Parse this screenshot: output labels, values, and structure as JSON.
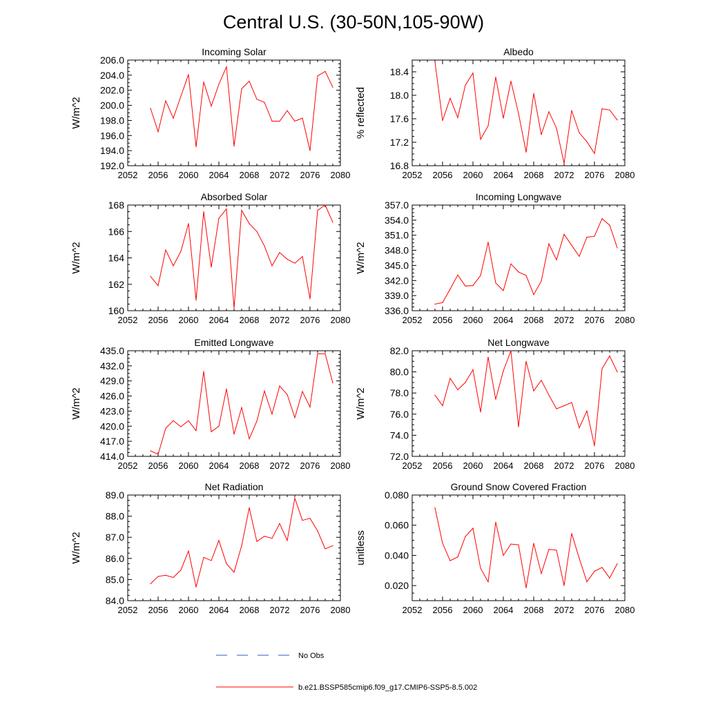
{
  "page_title": "Central U.S. (30-50N,105-90W)",
  "legend": {
    "position": "bottom-center",
    "entries": [
      {
        "label": "No Obs",
        "color": "#3355cc",
        "style": "dashed"
      },
      {
        "label": "b.e21.BSSP585cmip6.f09_g17.CMIP6-SSP5-8.5.002",
        "color": "#ff0000",
        "style": "solid"
      }
    ]
  },
  "chart_data": [
    {
      "type": "line",
      "title": "Incoming Solar",
      "ylabel": "W/m^2",
      "xlim": [
        2052,
        2080
      ],
      "xticks": [
        "2052",
        "2056",
        "2060",
        "2064",
        "2068",
        "2072",
        "2076",
        "2080"
      ],
      "ylim": [
        192,
        206
      ],
      "yticks": [
        "192.0",
        "194.0",
        "196.0",
        "198.0",
        "200.0",
        "202.0",
        "204.0",
        "206.0"
      ],
      "grid": false,
      "series": [
        {
          "name": "b.e21.BSSP585cmip6.f09_g17.CMIP6-SSP5-8.5.002",
          "color": "#ff0000",
          "x": [
            2055,
            2056,
            2057,
            2058,
            2059,
            2060,
            2061,
            2062,
            2063,
            2064,
            2065,
            2066,
            2067,
            2068,
            2069,
            2070,
            2071,
            2072,
            2073,
            2074,
            2075,
            2076,
            2077,
            2078,
            2079
          ],
          "values": [
            199.6,
            196.5,
            200.6,
            198.3,
            201.2,
            204.1,
            194.5,
            203.1,
            199.9,
            202.8,
            205.1,
            194.6,
            202.2,
            203.2,
            200.8,
            200.4,
            197.9,
            197.9,
            199.3,
            197.9,
            198.3,
            194.0,
            203.9,
            204.5,
            202.4
          ]
        }
      ]
    },
    {
      "type": "line",
      "title": "Albedo",
      "ylabel": "% reflected",
      "xlim": [
        2052,
        2080
      ],
      "xticks": [
        "2052",
        "2056",
        "2060",
        "2064",
        "2068",
        "2072",
        "2076",
        "2080"
      ],
      "ylim": [
        16.8,
        18.6
      ],
      "yticks": [
        "16.8",
        "17.2",
        "17.6",
        "18.0",
        "18.4"
      ],
      "grid": false,
      "series": [
        {
          "name": "b.e21.BSSP585cmip6.f09_g17.CMIP6-SSP5-8.5.002",
          "color": "#ff0000",
          "x": [
            2055,
            2056,
            2057,
            2058,
            2059,
            2060,
            2061,
            2062,
            2063,
            2064,
            2065,
            2066,
            2067,
            2068,
            2069,
            2070,
            2071,
            2072,
            2073,
            2074,
            2075,
            2076,
            2077,
            2078,
            2079
          ],
          "values": [
            18.57,
            17.57,
            17.95,
            17.62,
            18.17,
            18.38,
            17.25,
            17.48,
            18.31,
            17.61,
            18.24,
            17.69,
            17.03,
            18.03,
            17.33,
            17.72,
            17.44,
            16.84,
            17.74,
            17.36,
            17.21,
            17.01,
            17.77,
            17.75,
            17.58
          ]
        }
      ]
    },
    {
      "type": "line",
      "title": "Absorbed Solar",
      "ylabel": "W/m^2",
      "xlim": [
        2052,
        2080
      ],
      "xticks": [
        "2052",
        "2056",
        "2060",
        "2064",
        "2068",
        "2072",
        "2076",
        "2080"
      ],
      "ylim": [
        160,
        168
      ],
      "yticks": [
        "160",
        "162",
        "164",
        "166",
        "168"
      ],
      "grid": false,
      "series": [
        {
          "name": "b.e21.BSSP585cmip6.f09_g17.CMIP6-SSP5-8.5.002",
          "color": "#ff0000",
          "x": [
            2055,
            2056,
            2057,
            2058,
            2059,
            2060,
            2061,
            2062,
            2063,
            2064,
            2065,
            2066,
            2067,
            2068,
            2069,
            2070,
            2071,
            2072,
            2073,
            2074,
            2075,
            2076,
            2077,
            2078,
            2079
          ],
          "values": [
            162.6,
            161.9,
            164.6,
            163.4,
            164.5,
            166.6,
            160.8,
            167.5,
            163.3,
            167.0,
            167.7,
            160.2,
            167.6,
            166.6,
            166.0,
            164.9,
            163.4,
            164.4,
            163.9,
            163.6,
            164.1,
            160.9,
            167.6,
            168.0,
            166.7
          ]
        }
      ]
    },
    {
      "type": "line",
      "title": "Incoming Longwave",
      "ylabel": "W/m^2",
      "xlim": [
        2052,
        2080
      ],
      "xticks": [
        "2052",
        "2056",
        "2060",
        "2064",
        "2068",
        "2072",
        "2076",
        "2080"
      ],
      "ylim": [
        336,
        357
      ],
      "yticks": [
        "336.0",
        "339.0",
        "342.0",
        "345.0",
        "348.0",
        "351.0",
        "354.0",
        "357.0"
      ],
      "grid": false,
      "series": [
        {
          "name": "b.e21.BSSP585cmip6.f09_g17.CMIP6-SSP5-8.5.002",
          "color": "#ff0000",
          "x": [
            2055,
            2056,
            2057,
            2058,
            2059,
            2060,
            2061,
            2062,
            2063,
            2064,
            2065,
            2066,
            2067,
            2068,
            2069,
            2070,
            2071,
            2072,
            2073,
            2074,
            2075,
            2076,
            2077,
            2078,
            2079
          ],
          "values": [
            337.3,
            337.6,
            340.3,
            343.1,
            340.9,
            341.0,
            343.0,
            349.6,
            341.5,
            340.0,
            345.3,
            343.7,
            343.0,
            339.2,
            341.9,
            349.3,
            346.1,
            351.2,
            349.0,
            346.8,
            350.6,
            350.8,
            354.3,
            353.0,
            348.5
          ]
        }
      ]
    },
    {
      "type": "line",
      "title": "Emitted Longwave",
      "ylabel": "W/m^2",
      "xlim": [
        2052,
        2080
      ],
      "xticks": [
        "2052",
        "2056",
        "2060",
        "2064",
        "2068",
        "2072",
        "2076",
        "2080"
      ],
      "ylim": [
        414,
        435
      ],
      "yticks": [
        "414.0",
        "417.0",
        "420.0",
        "423.0",
        "426.0",
        "429.0",
        "432.0",
        "435.0"
      ],
      "grid": false,
      "series": [
        {
          "name": "b.e21.BSSP585cmip6.f09_g17.CMIP6-SSP5-8.5.002",
          "color": "#ff0000",
          "x": [
            2055,
            2056,
            2057,
            2058,
            2059,
            2060,
            2061,
            2062,
            2063,
            2064,
            2065,
            2066,
            2067,
            2068,
            2069,
            2070,
            2071,
            2072,
            2073,
            2074,
            2075,
            2076,
            2077,
            2078,
            2079
          ],
          "values": [
            415.1,
            414.4,
            419.6,
            421.1,
            419.9,
            421.1,
            419.1,
            430.9,
            418.9,
            420.0,
            427.4,
            418.4,
            423.7,
            417.5,
            421.0,
            427.0,
            422.4,
            428.0,
            426.3,
            421.7,
            426.9,
            423.8,
            434.4,
            434.4,
            428.6
          ]
        }
      ]
    },
    {
      "type": "line",
      "title": "Net Longwave",
      "ylabel": "W/m^2",
      "xlim": [
        2052,
        2080
      ],
      "xticks": [
        "2052",
        "2056",
        "2060",
        "2064",
        "2068",
        "2072",
        "2076",
        "2080"
      ],
      "ylim": [
        72,
        82
      ],
      "yticks": [
        "72.0",
        "74.0",
        "76.0",
        "78.0",
        "80.0",
        "82.0"
      ],
      "grid": false,
      "series": [
        {
          "name": "b.e21.BSSP585cmip6.f09_g17.CMIP6-SSP5-8.5.002",
          "color": "#ff0000",
          "x": [
            2055,
            2056,
            2057,
            2058,
            2059,
            2060,
            2061,
            2062,
            2063,
            2064,
            2065,
            2066,
            2067,
            2068,
            2069,
            2070,
            2071,
            2072,
            2073,
            2074,
            2075,
            2076,
            2077,
            2078,
            2079
          ],
          "values": [
            77.8,
            76.8,
            79.4,
            78.3,
            79.0,
            80.2,
            76.2,
            81.4,
            77.4,
            80.1,
            82.0,
            74.8,
            81.0,
            78.2,
            79.2,
            77.8,
            76.5,
            76.8,
            77.1,
            74.7,
            76.3,
            73.0,
            80.3,
            81.5,
            80.0
          ]
        }
      ]
    },
    {
      "type": "line",
      "title": "Net Radiation",
      "ylabel": "W/m^2",
      "xlim": [
        2052,
        2080
      ],
      "xticks": [
        "2052",
        "2056",
        "2060",
        "2064",
        "2068",
        "2072",
        "2076",
        "2080"
      ],
      "ylim": [
        84,
        89
      ],
      "yticks": [
        "84.0",
        "85.0",
        "86.0",
        "87.0",
        "88.0",
        "89.0"
      ],
      "grid": false,
      "series": [
        {
          "name": "b.e21.BSSP585cmip6.f09_g17.CMIP6-SSP5-8.5.002",
          "color": "#ff0000",
          "x": [
            2055,
            2056,
            2057,
            2058,
            2059,
            2060,
            2061,
            2062,
            2063,
            2064,
            2065,
            2066,
            2067,
            2068,
            2069,
            2070,
            2071,
            2072,
            2073,
            2074,
            2075,
            2076,
            2077,
            2078,
            2079
          ],
          "values": [
            84.8,
            85.15,
            85.2,
            85.1,
            85.45,
            86.35,
            84.65,
            86.05,
            85.9,
            86.85,
            85.75,
            85.35,
            86.6,
            88.4,
            86.8,
            87.05,
            86.95,
            87.65,
            86.85,
            88.85,
            87.8,
            87.9,
            87.3,
            86.45,
            86.6
          ]
        }
      ]
    },
    {
      "type": "line",
      "title": "Ground Snow Covered Fraction",
      "ylabel": "unitless",
      "xlim": [
        2052,
        2080
      ],
      "xticks": [
        "2052",
        "2056",
        "2060",
        "2064",
        "2068",
        "2072",
        "2076",
        "2080"
      ],
      "ylim": [
        0.01,
        0.08
      ],
      "yticks": [
        "0.020",
        "0.040",
        "0.060",
        "0.080"
      ],
      "grid": false,
      "series": [
        {
          "name": "b.e21.BSSP585cmip6.f09_g17.CMIP6-SSP5-8.5.002",
          "color": "#ff0000",
          "x": [
            2055,
            2056,
            2057,
            2058,
            2059,
            2060,
            2061,
            2062,
            2063,
            2064,
            2065,
            2066,
            2067,
            2068,
            2069,
            2070,
            2071,
            2072,
            2073,
            2074,
            2075,
            2076,
            2077,
            2078,
            2079
          ],
          "values": [
            0.0715,
            0.048,
            0.0365,
            0.039,
            0.0525,
            0.058,
            0.0315,
            0.0225,
            0.062,
            0.04,
            0.0475,
            0.047,
            0.0185,
            0.048,
            0.028,
            0.044,
            0.0435,
            0.02,
            0.0545,
            0.038,
            0.0225,
            0.0295,
            0.032,
            0.025,
            0.0345
          ]
        }
      ]
    }
  ]
}
